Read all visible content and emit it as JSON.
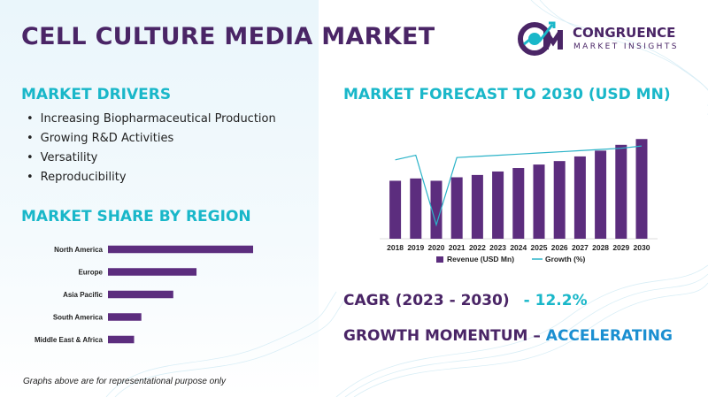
{
  "title": "CELL CULTURE MEDIA MARKET",
  "logo": {
    "name": "CONGRUENCE",
    "tagline": "MARKET INSIGHTS",
    "icon": "cm-logo-icon"
  },
  "drivers": {
    "heading": "MARKET DRIVERS",
    "items": [
      "Increasing Biopharmaceutical  Production",
      "Growing R&D Activities",
      "Versatility",
      "Reproducibility"
    ]
  },
  "region": {
    "heading": "MARKET SHARE BY REGION"
  },
  "forecast": {
    "heading": "MARKET FORECAST TO 2030 (USD MN)"
  },
  "cagr": {
    "label": "CAGR (2023 - 2030)",
    "value": "- 12.2%"
  },
  "momentum": {
    "label": "GROWTH MOMENTUM – ",
    "value": "ACCELERATING"
  },
  "footnote": "Graphs above are for representational purpose only",
  "colors": {
    "purple": "#4a2566",
    "bar": "#5c2d7e",
    "teal": "#19b7c9",
    "blue": "#1b8fd1",
    "line": "#2bb3c8"
  },
  "chart_data": [
    {
      "type": "bar",
      "orientation": "horizontal",
      "categories": [
        "North America",
        "Europe",
        "Asia Pacific",
        "South America",
        "Middle East & Africa"
      ],
      "values": [
        100,
        61,
        45,
        23,
        18
      ],
      "legend": false
    },
    {
      "type": "bar",
      "categories": [
        "2018",
        "2019",
        "2020",
        "2021",
        "2022",
        "2023",
        "2024",
        "2025",
        "2026",
        "2027",
        "2028",
        "2029",
        "2030"
      ],
      "series": [
        {
          "name": "Revenue (USD Mn)",
          "type": "bar",
          "values": [
            50,
            52,
            50,
            53,
            55,
            58,
            61,
            64,
            67,
            71,
            76,
            81,
            86
          ]
        },
        {
          "name": "Growth (%)",
          "type": "line",
          "values": [
            68,
            72,
            12,
            70,
            71,
            72,
            73,
            74,
            75,
            76,
            77,
            78,
            80
          ]
        }
      ],
      "legend": "bottom",
      "ylim": [
        0,
        90
      ],
      "grid": false
    }
  ]
}
